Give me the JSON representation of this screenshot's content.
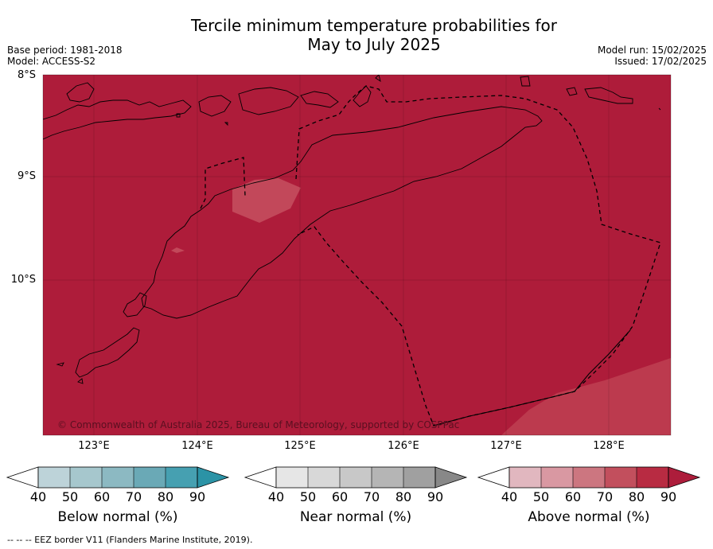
{
  "title_line1": "Tercile minimum temperature probabilities for",
  "title_line2": "May to July 2025",
  "base_period": "Base period: 1981-2018",
  "model": "Model: ACCESS-S2",
  "model_run": "Model run: 15/02/2025",
  "issued": "Issued: 17/02/2025",
  "lat_ticks": [
    "8°S",
    "9°S",
    "10°S"
  ],
  "lon_ticks": [
    "123°E",
    "124°E",
    "125°E",
    "126°E",
    "127°E",
    "128°E"
  ],
  "copyright": "© Commonwealth of Australia 2025, Bureau of Meteorology, supported by COSPPac",
  "colorbars": [
    {
      "label": "Below normal (%)",
      "ticks": [
        "40",
        "50",
        "60",
        "70",
        "80",
        "90"
      ],
      "colors": [
        "#ffffff",
        "#bdd3d9",
        "#a6c7cd",
        "#8cb9c2",
        "#6aa9b6",
        "#46a0b1",
        "#2b93a6"
      ]
    },
    {
      "label": "Near normal (%)",
      "ticks": [
        "40",
        "50",
        "60",
        "70",
        "80",
        "90"
      ],
      "colors": [
        "#ffffff",
        "#e6e6e6",
        "#d8d8d8",
        "#c8c8c8",
        "#b5b5b5",
        "#a0a0a0",
        "#888888"
      ]
    },
    {
      "label": "Above normal (%)",
      "ticks": [
        "40",
        "50",
        "60",
        "70",
        "80",
        "90"
      ],
      "colors": [
        "#ffffff",
        "#e1b7bf",
        "#d998a2",
        "#cc7680",
        "#c24f5d",
        "#b82b42",
        "#ad1d3b"
      ]
    }
  ],
  "map_colors": {
    "main": "#ae1c3a",
    "light": "#bc3a4e",
    "lighter": "#c2485a"
  },
  "footer": "--  --  -- EEZ border V11 (Flanders Marine Institute, 2019)."
}
